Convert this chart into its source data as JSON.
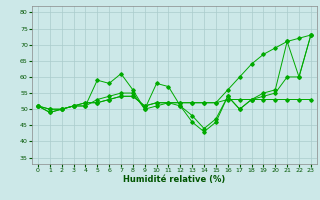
{
  "title": "",
  "xlabel": "Humidité relative (%)",
  "ylabel": "",
  "bg_color": "#cce8e8",
  "grid_color": "#aacccc",
  "line_color": "#00aa00",
  "xlim": [
    -0.5,
    23.5
  ],
  "ylim": [
    33,
    82
  ],
  "yticks": [
    35,
    40,
    45,
    50,
    55,
    60,
    65,
    70,
    75,
    80
  ],
  "xticks": [
    0,
    1,
    2,
    3,
    4,
    5,
    6,
    7,
    8,
    9,
    10,
    11,
    12,
    13,
    14,
    15,
    16,
    17,
    18,
    19,
    20,
    21,
    22,
    23
  ],
  "series": [
    [
      51,
      49,
      50,
      51,
      51,
      59,
      58,
      61,
      56,
      50,
      58,
      57,
      51,
      46,
      43,
      46,
      54,
      50,
      53,
      55,
      56,
      71,
      60,
      73
    ],
    [
      51,
      50,
      50,
      51,
      52,
      52,
      53,
      54,
      54,
      51,
      52,
      52,
      52,
      52,
      52,
      52,
      53,
      53,
      53,
      53,
      53,
      53,
      53,
      53
    ],
    [
      51,
      50,
      50,
      51,
      52,
      52,
      53,
      54,
      54,
      51,
      52,
      52,
      52,
      52,
      52,
      52,
      56,
      60,
      64,
      67,
      69,
      71,
      72,
      73
    ],
    [
      51,
      49,
      50,
      51,
      51,
      53,
      54,
      55,
      55,
      50,
      51,
      52,
      51,
      48,
      44,
      47,
      54,
      50,
      53,
      54,
      55,
      60,
      60,
      73
    ]
  ]
}
